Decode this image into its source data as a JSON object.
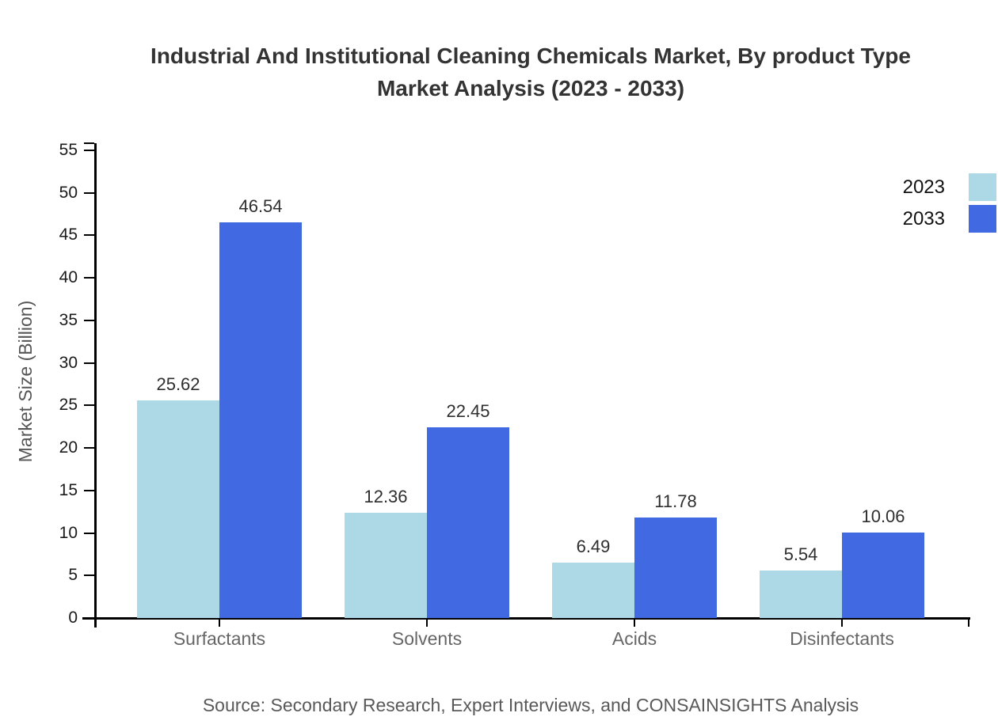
{
  "title": {
    "line1": "Industrial And Institutional Cleaning Chemicals Market, By product Type",
    "line2": "Market Analysis (2023 - 2033)"
  },
  "source": "Source: Secondary Research, Expert Interviews, and CONSAINSIGHTS Analysis",
  "chart_data": {
    "type": "bar",
    "title": "Industrial And Institutional Cleaning Chemicals Market, By product Type Market Analysis (2023 - 2033)",
    "categories": [
      "Surfactants",
      "Solvents",
      "Acids",
      "Disinfectants"
    ],
    "series": [
      {
        "name": "2023",
        "color": "#ADD8E6",
        "values": [
          25.62,
          12.36,
          6.49,
          5.54
        ]
      },
      {
        "name": "2033",
        "color": "#4169E1",
        "values": [
          46.54,
          22.45,
          11.78,
          10.06
        ]
      }
    ],
    "xlabel": "",
    "ylabel": "Market Size (Billion)",
    "ylim": [
      0,
      55
    ],
    "ytick_step": 5,
    "grid": false,
    "legend_position": "top-right",
    "bar_labels": true,
    "colors": {
      "axis": "#000000",
      "tick_label": "#1a1a1a",
      "category_label": "#666666",
      "value_label": "#2e2e2e"
    }
  }
}
